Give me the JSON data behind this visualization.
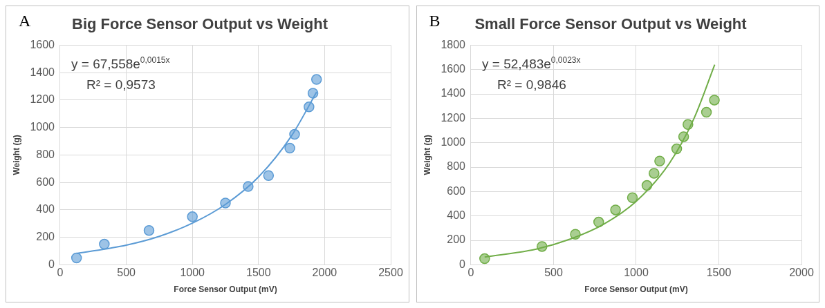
{
  "chart_data": [
    {
      "type": "scatter",
      "title": "Big Force Sensor Output vs Weight",
      "xlabel": "Force Sensor Output (mV)",
      "ylabel": "Weight (g)",
      "annotations": [
        "A",
        "y = 67,558e$^{0,0015x}$",
        "R² = 0,9573"
      ],
      "xlim": [
        0,
        2500
      ],
      "xticks": [
        0,
        500,
        1000,
        1500,
        2000,
        2500
      ],
      "ylim": [
        0,
        1600
      ],
      "yticks": [
        0,
        200,
        400,
        600,
        800,
        1000,
        1200,
        1400,
        1600
      ],
      "grid": true,
      "marker": "circle",
      "series": [
        {
          "color": "#5b9bd5",
          "x": [
            124,
            334,
            672,
            1000,
            1250,
            1422,
            1576,
            1737,
            1773,
            1882,
            1912,
            1939
          ],
          "values": [
            50,
            150,
            250,
            350,
            450,
            570,
            650,
            850,
            950,
            1150,
            1250,
            1350
          ]
        },
        {
          "type": "line",
          "color": "#5b9bd5",
          "marker": "none",
          "line_style": "solid",
          "x": [
            124,
            500,
            750,
            1000,
            1250,
            1500,
            1750,
            1940
          ],
          "values": [
            82,
            143,
            207,
            303,
            440,
            640,
            940,
            1260
          ]
        }
      ]
    },
    {
      "type": "scatter",
      "title": "Small Force Sensor Output vs Weight",
      "xlabel": "Force Sensor Output (mV)",
      "ylabel": "Weight (g)",
      "annotations": [
        "B",
        "y = 52,483e$^{0,0023x}$",
        "R² = 0,9846"
      ],
      "xlim": [
        0,
        2000
      ],
      "xticks": [
        0,
        500,
        1000,
        1500,
        2000
      ],
      "ylim": [
        0,
        1800
      ],
      "yticks": [
        0,
        200,
        400,
        600,
        800,
        1000,
        1200,
        1400,
        1600,
        1800
      ],
      "grid": true,
      "marker": "circle",
      "series": [
        {
          "color": "#70ad47",
          "x": [
            83,
            430,
            632,
            773,
            875,
            977,
            1065,
            1108,
            1142,
            1245,
            1287,
            1313,
            1425,
            1473
          ],
          "values": [
            50,
            150,
            250,
            350,
            450,
            550,
            650,
            750,
            850,
            950,
            1050,
            1150,
            1250,
            1350
          ]
        },
        {
          "type": "line",
          "color": "#70ad47",
          "marker": "none",
          "line_style": "solid",
          "x": [
            83,
            400,
            600,
            800,
            1000,
            1200,
            1350,
            1475
          ],
          "values": [
            63,
            130,
            210,
            330,
            520,
            830,
            1200,
            1640
          ]
        }
      ]
    }
  ]
}
